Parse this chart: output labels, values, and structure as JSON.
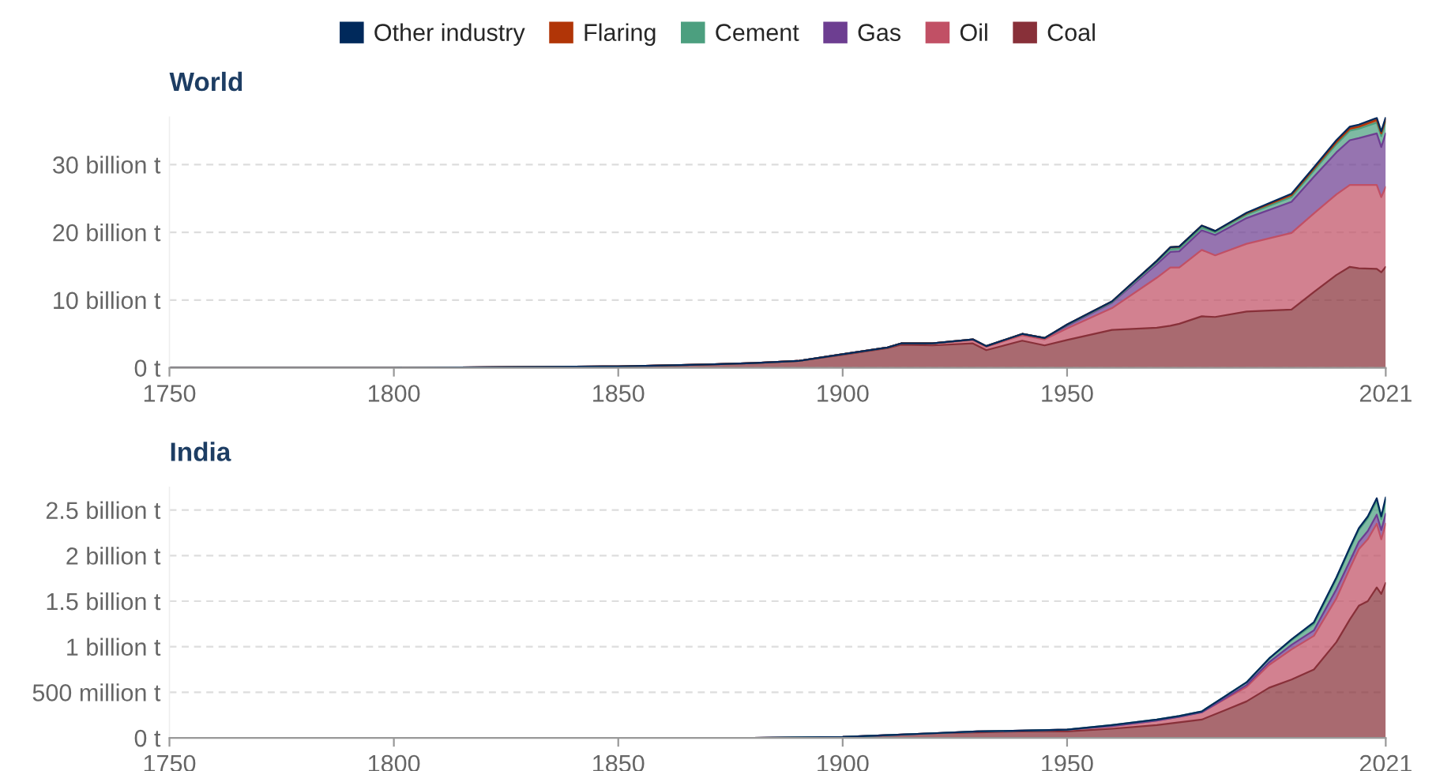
{
  "chart_data": [
    {
      "type": "area",
      "title": "World",
      "stacked": true,
      "legend": "top",
      "grid": "y",
      "x": [
        1750,
        1800,
        1850,
        1870,
        1880,
        1890,
        1900,
        1910,
        1913,
        1920,
        1929,
        1932,
        1940,
        1945,
        1950,
        1960,
        1970,
        1973,
        1975,
        1980,
        1983,
        1990,
        2000,
        2005,
        2010,
        2013,
        2015,
        2019,
        2020,
        2021
      ],
      "xlim": [
        1750,
        2021
      ],
      "xticks": [
        1750,
        1800,
        1850,
        1900,
        1950,
        2021
      ],
      "ylim": [
        0,
        37
      ],
      "yticks": [
        {
          "value": 0,
          "label": "0 t"
        },
        {
          "value": 10,
          "label": "10 billion t"
        },
        {
          "value": 20,
          "label": "20 billion t"
        },
        {
          "value": 30,
          "label": "30 billion t"
        }
      ],
      "series": [
        {
          "name": "Coal",
          "color": "#883039",
          "values": [
            0,
            0,
            0.2,
            0.5,
            0.7,
            1.0,
            1.9,
            2.9,
            3.4,
            3.3,
            3.6,
            2.6,
            4.0,
            3.3,
            4.1,
            5.6,
            5.9,
            6.2,
            6.5,
            7.6,
            7.5,
            8.3,
            8.6,
            11.2,
            13.7,
            14.9,
            14.7,
            14.6,
            14.1,
            14.9
          ]
        },
        {
          "name": "Oil",
          "color": "#c15065",
          "values": [
            0,
            0,
            0,
            0,
            0,
            0,
            0.1,
            0.1,
            0.2,
            0.3,
            0.5,
            0.5,
            0.8,
            0.9,
            1.7,
            3.2,
            7.4,
            8.6,
            8.3,
            9.8,
            9.1,
            10.0,
            11.3,
            11.6,
            11.9,
            12.1,
            12.3,
            12.4,
            11.1,
            11.8
          ]
        },
        {
          "name": "Gas",
          "color": "#6d3e91",
          "values": [
            0,
            0,
            0,
            0,
            0,
            0,
            0,
            0,
            0,
            0,
            0.1,
            0.1,
            0.2,
            0.2,
            0.4,
            0.8,
            2.0,
            2.3,
            2.4,
            2.9,
            3.0,
            3.8,
            4.6,
            5.4,
            6.2,
            6.6,
            6.9,
            7.6,
            7.4,
            7.9
          ]
        },
        {
          "name": "Cement",
          "color": "#4c9f7f",
          "values": [
            0,
            0,
            0,
            0,
            0,
            0,
            0,
            0,
            0,
            0,
            0,
            0,
            0,
            0,
            0.1,
            0.1,
            0.3,
            0.4,
            0.4,
            0.4,
            0.4,
            0.5,
            0.7,
            0.9,
            1.2,
            1.4,
            1.4,
            1.6,
            1.6,
            1.7
          ]
        },
        {
          "name": "Flaring",
          "color": "#b13507",
          "values": [
            0,
            0,
            0,
            0,
            0,
            0,
            0,
            0,
            0,
            0,
            0,
            0,
            0,
            0,
            0.1,
            0.1,
            0.2,
            0.3,
            0.3,
            0.3,
            0.2,
            0.2,
            0.3,
            0.3,
            0.3,
            0.3,
            0.3,
            0.4,
            0.4,
            0.4
          ]
        },
        {
          "name": "Other industry",
          "color": "#00295b",
          "values": [
            0,
            0,
            0,
            0,
            0,
            0,
            0,
            0,
            0,
            0,
            0,
            0,
            0,
            0,
            0,
            0,
            0,
            0,
            0,
            0,
            0,
            0.1,
            0.2,
            0.2,
            0.3,
            0.3,
            0.3,
            0.3,
            0.3,
            0.3
          ]
        }
      ]
    },
    {
      "type": "area",
      "title": "India",
      "stacked": true,
      "grid": "y",
      "x": [
        1750,
        1800,
        1850,
        1880,
        1900,
        1910,
        1920,
        1930,
        1940,
        1950,
        1960,
        1970,
        1975,
        1980,
        1985,
        1990,
        1995,
        2000,
        2005,
        2010,
        2013,
        2015,
        2017,
        2019,
        2020,
        2021
      ],
      "xlim": [
        1750,
        2021
      ],
      "xticks": [
        1750,
        1800,
        1850,
        1900,
        1950,
        2021
      ],
      "ylim": [
        0,
        2750000000
      ],
      "yticks": [
        {
          "value": 0,
          "label": "0 t"
        },
        {
          "value": 500000000,
          "label": "500 million t"
        },
        {
          "value": 1000000000,
          "label": "1 billion t"
        },
        {
          "value": 1500000000,
          "label": "1.5 billion t"
        },
        {
          "value": 2000000000,
          "label": "2 billion t"
        },
        {
          "value": 2500000000,
          "label": "2.5 billion t"
        }
      ],
      "series": [
        {
          "name": "Coal",
          "color": "#883039",
          "values": [
            0,
            0,
            0,
            0,
            10000000,
            30000000,
            50000000,
            60000000,
            70000000,
            70000000,
            100000000,
            140000000,
            170000000,
            200000000,
            300000000,
            400000000,
            550000000,
            640000000,
            750000000,
            1050000000,
            1300000000,
            1450000000,
            1500000000,
            1650000000,
            1580000000,
            1700000000
          ]
        },
        {
          "name": "Oil",
          "color": "#c15065",
          "values": [
            0,
            0,
            0,
            0,
            0,
            0,
            0,
            10000000,
            10000000,
            20000000,
            30000000,
            50000000,
            60000000,
            80000000,
            120000000,
            160000000,
            250000000,
            330000000,
            370000000,
            480000000,
            560000000,
            620000000,
            680000000,
            700000000,
            600000000,
            650000000
          ]
        },
        {
          "name": "Gas",
          "color": "#6d3e91",
          "values": [
            0,
            0,
            0,
            0,
            0,
            0,
            0,
            0,
            0,
            0,
            0,
            0,
            0,
            0,
            10000000,
            20000000,
            30000000,
            50000000,
            60000000,
            100000000,
            80000000,
            80000000,
            90000000,
            100000000,
            100000000,
            110000000
          ]
        },
        {
          "name": "Cement",
          "color": "#4c9f7f",
          "values": [
            0,
            0,
            0,
            0,
            0,
            0,
            0,
            0,
            0,
            0,
            10000000,
            10000000,
            10000000,
            10000000,
            20000000,
            30000000,
            40000000,
            50000000,
            70000000,
            110000000,
            130000000,
            130000000,
            140000000,
            150000000,
            120000000,
            150000000
          ]
        },
        {
          "name": "Other industry",
          "color": "#00295b",
          "values": [
            0,
            0,
            0,
            0,
            0,
            0,
            0,
            0,
            0,
            0,
            0,
            0,
            0,
            0,
            0,
            0,
            0,
            10000000,
            20000000,
            20000000,
            20000000,
            20000000,
            20000000,
            30000000,
            30000000,
            30000000
          ]
        }
      ]
    }
  ]
}
